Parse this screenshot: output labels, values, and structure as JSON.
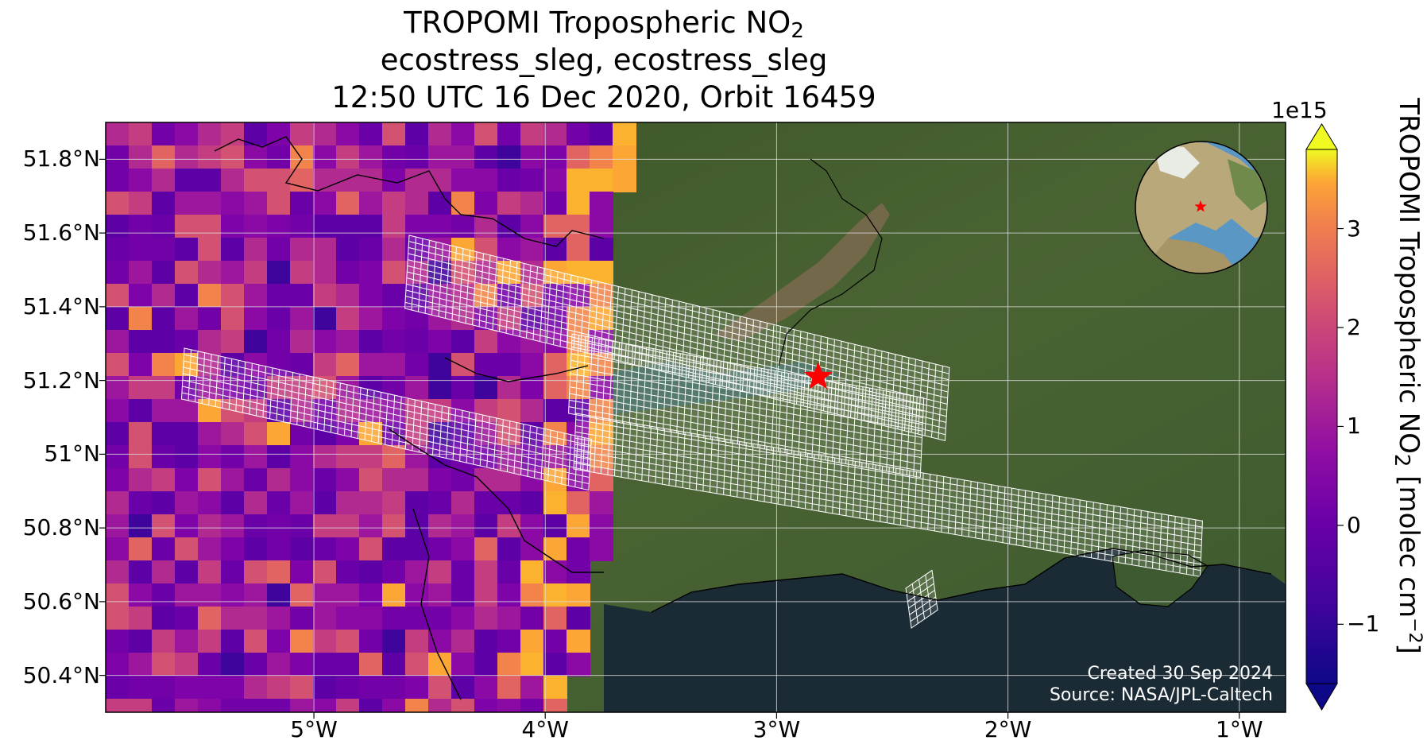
{
  "title": {
    "line1_main": "TROPOMI Tropospheric NO",
    "line1_sub": "2",
    "line2": "ecostress_sleg, ecostress_sleg",
    "line3": "12:50 UTC 16 Dec 2020, Orbit 16459"
  },
  "axes": {
    "lat_labels": [
      "51.8°N",
      "51.6°N",
      "51.4°N",
      "51.2°N",
      "51°N",
      "50.8°N",
      "50.6°N",
      "50.4°N"
    ],
    "lat_values": [
      51.8,
      51.6,
      51.4,
      51.2,
      51.0,
      50.8,
      50.6,
      50.4
    ],
    "lon_labels": [
      "5°W",
      "4°W",
      "3°W",
      "2°W",
      "1°W"
    ],
    "lon_values": [
      -5,
      -4,
      -3,
      -2,
      -1
    ],
    "lon_range": [
      -5.9,
      -0.8
    ],
    "lat_range": [
      50.3,
      51.9
    ]
  },
  "colorbar": {
    "exponent": "1e15",
    "ticks": [
      "3",
      "2",
      "1",
      "0",
      "−1"
    ],
    "tick_values": [
      3,
      2,
      1,
      0,
      -1
    ],
    "range": [
      -1.6,
      3.8
    ],
    "colormap": "plasma",
    "label_main": "TROPOMI Tropospheric NO",
    "label_sub": "2",
    "label_unit": " [molec cm",
    "label_unit_sup": "−2",
    "label_end": "]"
  },
  "site": {
    "lon": -2.82,
    "lat": 51.21,
    "marker": "star-icon",
    "color": "#ff0000"
  },
  "credits": {
    "created": "Created 30 Sep 2024",
    "source": "Source: NASA/JPL-Caltech"
  },
  "colors": {
    "sea": "#1b2b36",
    "land": "#3f5a2c",
    "swath": "#ffffff"
  }
}
